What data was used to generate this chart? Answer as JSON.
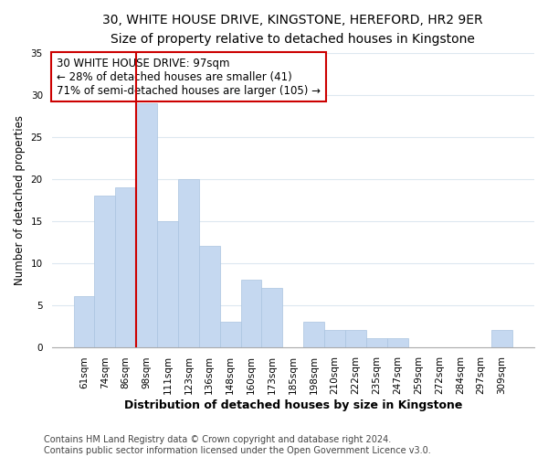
{
  "title": "30, WHITE HOUSE DRIVE, KINGSTONE, HEREFORD, HR2 9ER",
  "subtitle": "Size of property relative to detached houses in Kingstone",
  "xlabel": "Distribution of detached houses by size in Kingstone",
  "ylabel": "Number of detached properties",
  "bar_labels": [
    "61sqm",
    "74sqm",
    "86sqm",
    "98sqm",
    "111sqm",
    "123sqm",
    "136sqm",
    "148sqm",
    "160sqm",
    "173sqm",
    "185sqm",
    "198sqm",
    "210sqm",
    "222sqm",
    "235sqm",
    "247sqm",
    "259sqm",
    "272sqm",
    "284sqm",
    "297sqm",
    "309sqm"
  ],
  "bar_values": [
    6,
    18,
    19,
    29,
    15,
    20,
    12,
    3,
    8,
    7,
    0,
    3,
    2,
    2,
    1,
    1,
    0,
    0,
    0,
    0,
    2
  ],
  "bar_color": "#c5d8f0",
  "bar_edge_color": "#aac4e0",
  "vline_color": "#cc0000",
  "annotation_lines": [
    "30 WHITE HOUSE DRIVE: 97sqm",
    "← 28% of detached houses are smaller (41)",
    "71% of semi-detached houses are larger (105) →"
  ],
  "annotation_box_color": "white",
  "annotation_box_edge_color": "#cc0000",
  "ylim": [
    0,
    35
  ],
  "yticks": [
    0,
    5,
    10,
    15,
    20,
    25,
    30,
    35
  ],
  "footer1": "Contains HM Land Registry data © Crown copyright and database right 2024.",
  "footer2": "Contains public sector information licensed under the Open Government Licence v3.0.",
  "title_fontsize": 10,
  "subtitle_fontsize": 9.5,
  "xlabel_fontsize": 9,
  "ylabel_fontsize": 8.5,
  "tick_fontsize": 7.5,
  "annotation_fontsize": 8.5,
  "footer_fontsize": 7
}
